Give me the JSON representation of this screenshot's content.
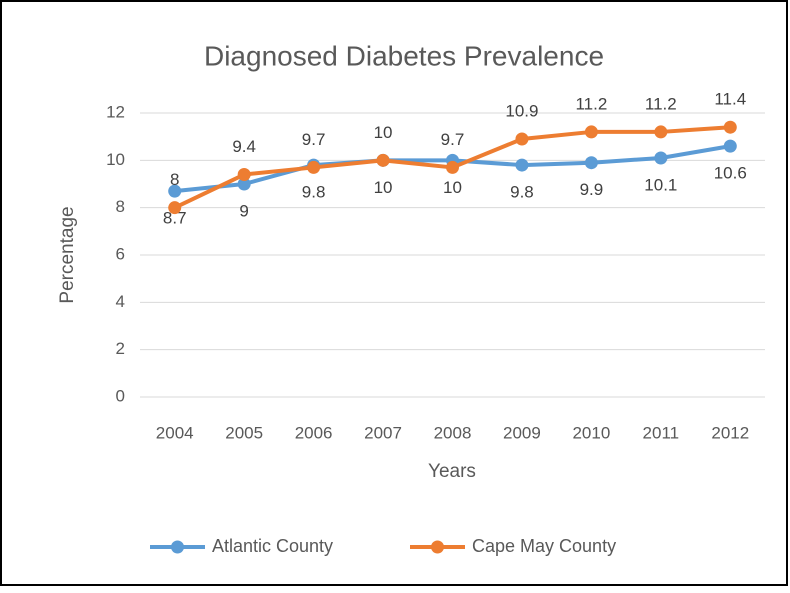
{
  "chart_data": {
    "type": "line",
    "title": "Diagnosed Diabetes Prevalence",
    "x_label": "Years",
    "y_label": "Percentage",
    "categories": [
      "2004",
      "2005",
      "2006",
      "2007",
      "2008",
      "2009",
      "2010",
      "2011",
      "2012"
    ],
    "series": [
      {
        "name": "Atlantic County",
        "color": "#5b9bd5",
        "label_position": "below",
        "values": [
          8.7,
          9,
          9.8,
          10,
          10,
          9.8,
          9.9,
          10.1,
          10.6
        ]
      },
      {
        "name": "Cape May County",
        "color": "#ed7d31",
        "label_position": "above",
        "values": [
          8,
          9.4,
          9.7,
          10,
          9.7,
          10.9,
          11.2,
          11.2,
          11.4
        ]
      }
    ],
    "ylim": [
      0,
      12
    ],
    "yticks": [
      0,
      2,
      4,
      6,
      8,
      10,
      12
    ],
    "grid": true,
    "legend": "bottom"
  }
}
